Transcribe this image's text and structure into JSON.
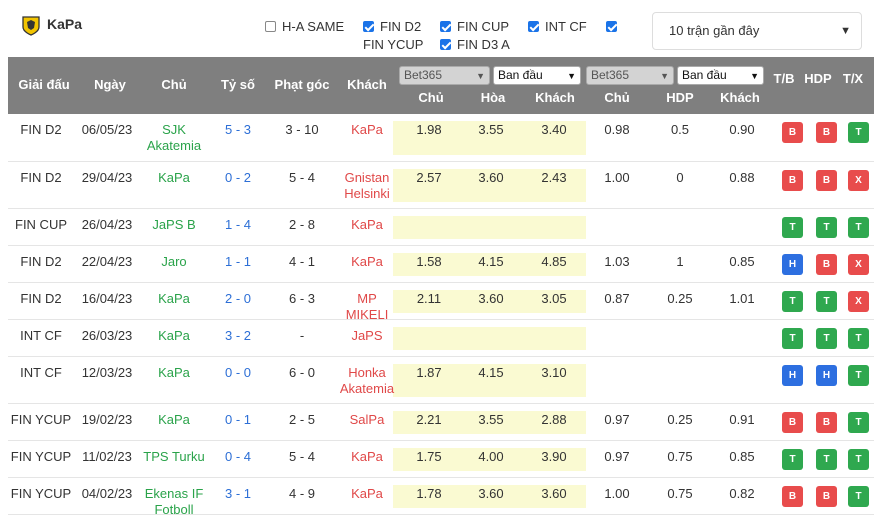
{
  "team": {
    "name": "KaPa"
  },
  "filters": [
    {
      "label": "H-A SAME",
      "checked": false
    },
    {
      "label": "FIN D2",
      "checked": true
    },
    {
      "label": "FIN CUP",
      "checked": true
    },
    {
      "label": "INT CF",
      "checked": true
    },
    {
      "label": "FIN YCUP",
      "checked": true
    },
    {
      "label": "FIN D3 A",
      "checked": true
    }
  ],
  "count_select": {
    "value": "10 trận gần đây"
  },
  "header": {
    "league": "Giải đấu",
    "date": "Ngày",
    "home": "Chủ",
    "score": "Tỷ số",
    "corners": "Phạt góc",
    "away": "Khách",
    "book1": "Bet365",
    "type1": "Ban đầu",
    "book2": "Bet365",
    "type2": "Ban đầu",
    "o_home": "Chủ",
    "o_draw": "Hòa",
    "o_away": "Khách",
    "h_home": "Chủ",
    "h_hdp": "HDP",
    "h_away": "Khách",
    "tb": "T/B",
    "hdp": "HDP",
    "tx": "T/X"
  },
  "rows": [
    {
      "league": "FIN D2",
      "date": "06/05/23",
      "home": "SJK Akatemia",
      "home_color": "green",
      "score": "5 - 3",
      "corners": "3 - 10",
      "away": "KaPa",
      "away_color": "red",
      "o1": "1.98",
      "ox": "3.55",
      "o2": "3.40",
      "h1": "0.98",
      "hl": "0.5",
      "h2": "0.90",
      "r1": "B",
      "r2": "B",
      "r3": "T"
    },
    {
      "league": "FIN D2",
      "date": "29/04/23",
      "home": "KaPa",
      "home_color": "green",
      "score": "0 - 2",
      "corners": "5 - 4",
      "away": "Gnistan Helsinki",
      "away_color": "red",
      "o1": "2.57",
      "ox": "3.60",
      "o2": "2.43",
      "h1": "1.00",
      "hl": "0",
      "h2": "0.88",
      "r1": "B",
      "r2": "B",
      "r3": "X"
    },
    {
      "league": "FIN CUP",
      "date": "26/04/23",
      "home": "JaPS B",
      "home_color": "green",
      "score": "1 - 4",
      "corners": "2 - 8",
      "away": "KaPa",
      "away_color": "red",
      "o1": "",
      "ox": "",
      "o2": "",
      "h1": "",
      "hl": "",
      "h2": "",
      "r1": "T",
      "r2": "T",
      "r3": "T"
    },
    {
      "league": "FIN D2",
      "date": "22/04/23",
      "home": "Jaro",
      "home_color": "green",
      "score": "1 - 1",
      "corners": "4 - 1",
      "away": "KaPa",
      "away_color": "red",
      "o1": "1.58",
      "ox": "4.15",
      "o2": "4.85",
      "h1": "1.03",
      "hl": "1",
      "h2": "0.85",
      "r1": "H",
      "r2": "B",
      "r3": "X"
    },
    {
      "league": "FIN D2",
      "date": "16/04/23",
      "home": "KaPa",
      "home_color": "green",
      "score": "2 - 0",
      "corners": "6 - 3",
      "away": "MP MIKELI",
      "away_color": "red",
      "o1": "2.11",
      "ox": "3.60",
      "o2": "3.05",
      "h1": "0.87",
      "hl": "0.25",
      "h2": "1.01",
      "r1": "T",
      "r2": "T",
      "r3": "X"
    },
    {
      "league": "INT CF",
      "date": "26/03/23",
      "home": "KaPa",
      "home_color": "green",
      "score": "3 - 2",
      "corners": "-",
      "away": "JaPS",
      "away_color": "red",
      "o1": "",
      "ox": "",
      "o2": "",
      "h1": "",
      "hl": "",
      "h2": "",
      "r1": "T",
      "r2": "T",
      "r3": "T"
    },
    {
      "league": "INT CF",
      "date": "12/03/23",
      "home": "KaPa",
      "home_color": "green",
      "score": "0 - 0",
      "corners": "6 - 0",
      "away": "Honka Akatemia",
      "away_color": "red",
      "o1": "1.87",
      "ox": "4.15",
      "o2": "3.10",
      "h1": "",
      "hl": "",
      "h2": "",
      "r1": "H",
      "r2": "H",
      "r3": "T"
    },
    {
      "league": "FIN YCUP",
      "date": "19/02/23",
      "home": "KaPa",
      "home_color": "green",
      "score": "0 - 1",
      "corners": "2 - 5",
      "away": "SalPa",
      "away_color": "red",
      "o1": "2.21",
      "ox": "3.55",
      "o2": "2.88",
      "h1": "0.97",
      "hl": "0.25",
      "h2": "0.91",
      "r1": "B",
      "r2": "B",
      "r3": "T"
    },
    {
      "league": "FIN YCUP",
      "date": "11/02/23",
      "home": "TPS Turku",
      "home_color": "green",
      "score": "0 - 4",
      "corners": "5 - 4",
      "away": "KaPa",
      "away_color": "red",
      "o1": "1.75",
      "ox": "4.00",
      "o2": "3.90",
      "h1": "0.97",
      "hl": "0.75",
      "h2": "0.85",
      "r1": "T",
      "r2": "T",
      "r3": "T"
    },
    {
      "league": "FIN YCUP",
      "date": "04/02/23",
      "home": "Ekenas IF Fotboll",
      "home_color": "green",
      "score": "3 - 1",
      "corners": "4 - 9",
      "away": "KaPa",
      "away_color": "red",
      "o1": "1.78",
      "ox": "3.60",
      "o2": "3.60",
      "h1": "1.00",
      "hl": "0.75",
      "h2": "0.82",
      "r1": "B",
      "r2": "B",
      "r3": "T"
    }
  ],
  "colors": {
    "win": "#2fa84f",
    "loss": "#e84c4c",
    "draw": "#2d6fe0",
    "header_bg": "#7f7f7f",
    "odds_bg": "#fafad2"
  }
}
